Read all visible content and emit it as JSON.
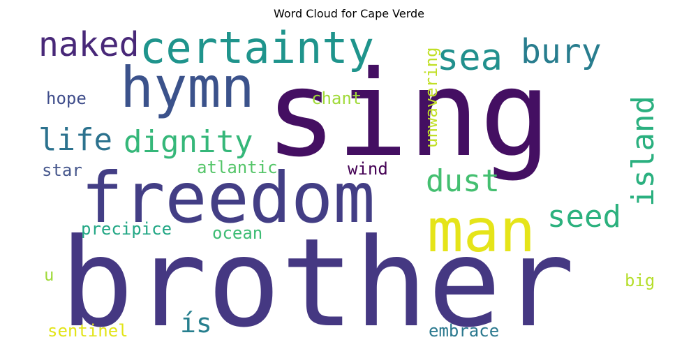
{
  "chart_data": {
    "type": "wordcloud",
    "title": "Word Cloud for Cape Verde",
    "colormap": "viridis",
    "words": [
      {
        "text": "sing",
        "color": "#440f62"
      },
      {
        "text": "brother",
        "color": "#453882"
      },
      {
        "text": "freedom",
        "color": "#433e85"
      },
      {
        "text": "hymn",
        "color": "#3b528b"
      },
      {
        "text": "man",
        "color": "#e5e419"
      },
      {
        "text": "certainty",
        "color": "#1f948c"
      },
      {
        "text": "sea",
        "color": "#21908d"
      },
      {
        "text": "naked",
        "color": "#482878"
      },
      {
        "text": "bury",
        "color": "#287d8e"
      },
      {
        "text": "dignity",
        "color": "#35b779"
      },
      {
        "text": "life",
        "color": "#2c728e"
      },
      {
        "text": "island",
        "color": "#2ab07f"
      },
      {
        "text": "dust",
        "color": "#44bf70"
      },
      {
        "text": "seed",
        "color": "#2cb17e"
      },
      {
        "text": "ís",
        "color": "#277f8e"
      },
      {
        "text": "unwavering",
        "color": "#c0df25"
      },
      {
        "text": "hope",
        "color": "#3e4c8a"
      },
      {
        "text": "chant",
        "color": "#a0da39"
      },
      {
        "text": "star",
        "color": "#46578c"
      },
      {
        "text": "atlantic",
        "color": "#54c568"
      },
      {
        "text": "wind",
        "color": "#440154"
      },
      {
        "text": "precipice",
        "color": "#22a785"
      },
      {
        "text": "ocean",
        "color": "#3dbc74"
      },
      {
        "text": "u",
        "color": "#9fda3a"
      },
      {
        "text": "big",
        "color": "#b5de2b"
      },
      {
        "text": "sentinel",
        "color": "#e2e418"
      },
      {
        "text": "embrace",
        "color": "#2a788e"
      }
    ]
  }
}
